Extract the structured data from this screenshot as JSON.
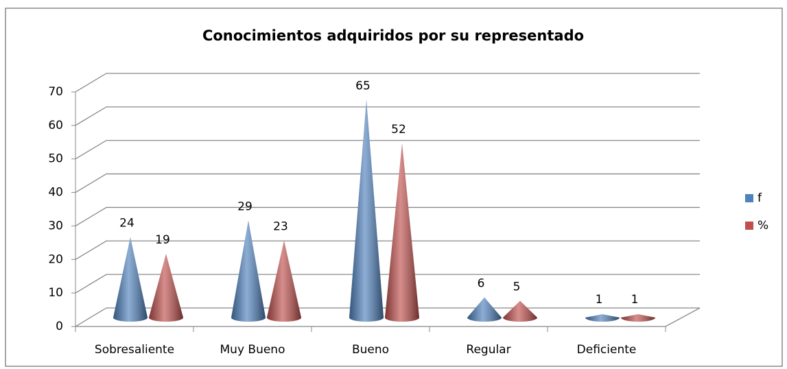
{
  "chart_data": {
    "type": "cone3d",
    "title": "Conocimientos adquiridos por su representado",
    "categories": [
      "Sobresaliente",
      "Muy Bueno",
      "Bueno",
      "Regular",
      "Deficiente"
    ],
    "series": [
      {
        "name": "f",
        "color": "#4f81bd",
        "values": [
          24,
          29,
          65,
          6,
          1
        ]
      },
      {
        "name": "%",
        "color": "#c0504d",
        "values": [
          19,
          23,
          52,
          5,
          1
        ]
      }
    ],
    "ylim": [
      0,
      70
    ],
    "yticks": [
      0,
      10,
      20,
      30,
      40,
      50,
      60,
      70
    ],
    "grid": true,
    "legend": "right"
  }
}
